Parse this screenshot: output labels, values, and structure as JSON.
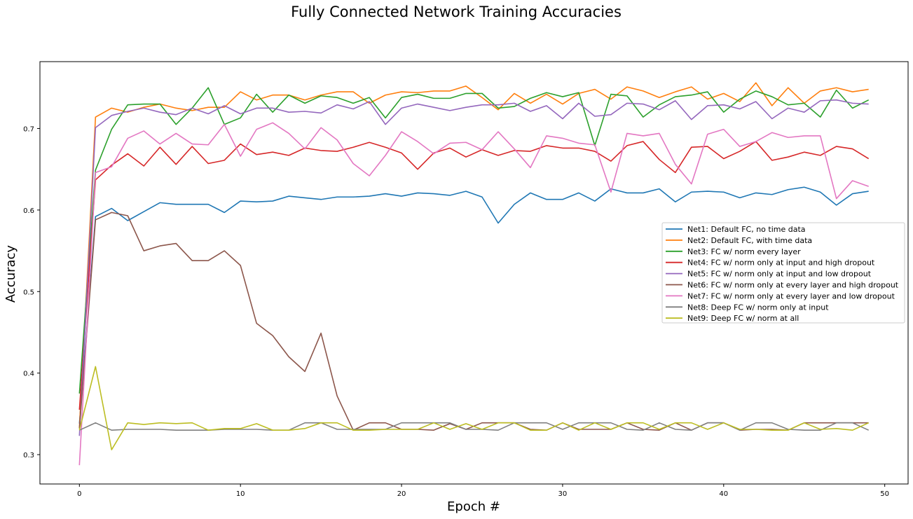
{
  "chart_data": {
    "type": "line",
    "title": "Fully Connected Network Training Accuracies",
    "xlabel": "Epoch #",
    "ylabel": "Accuracy",
    "xlim": [
      -2.45,
      51.45
    ],
    "ylim": [
      0.264,
      0.782
    ],
    "xticks": [
      0,
      10,
      20,
      30,
      40,
      50
    ],
    "yticks": [
      0.3,
      0.4,
      0.5,
      0.6,
      0.7
    ],
    "xtick_labels": [
      "0",
      "10",
      "20",
      "30",
      "40",
      "50"
    ],
    "ytick_labels": [
      "0.3",
      "0.4",
      "0.5",
      "0.6",
      "0.7"
    ],
    "grid": false,
    "legend_position": "center-right",
    "x": [
      0,
      1,
      2,
      3,
      4,
      5,
      6,
      7,
      8,
      9,
      10,
      11,
      12,
      13,
      14,
      15,
      16,
      17,
      18,
      19,
      20,
      21,
      22,
      23,
      24,
      25,
      26,
      27,
      28,
      29,
      30,
      31,
      32,
      33,
      34,
      35,
      36,
      37,
      38,
      39,
      40,
      41,
      42,
      43,
      44,
      45,
      46,
      47,
      48,
      49
    ],
    "series": [
      {
        "name": "Net1: Default FC, no time data",
        "color": "#1f77b4",
        "values": [
          0.338,
          0.592,
          0.602,
          0.587,
          0.598,
          0.609,
          0.607,
          0.607,
          0.607,
          0.597,
          0.611,
          0.61,
          0.611,
          0.617,
          0.615,
          0.613,
          0.616,
          0.616,
          0.617,
          0.62,
          0.617,
          0.621,
          0.62,
          0.618,
          0.623,
          0.616,
          0.584,
          0.607,
          0.621,
          0.613,
          0.613,
          0.621,
          0.611,
          0.626,
          0.621,
          0.621,
          0.626,
          0.61,
          0.622,
          0.623,
          0.622,
          0.615,
          0.621,
          0.619,
          0.625,
          0.628,
          0.622,
          0.606,
          0.62,
          0.623
        ]
      },
      {
        "name": "Net2: Default FC, with time data",
        "color": "#ff7f0e",
        "values": [
          0.333,
          0.714,
          0.725,
          0.72,
          0.726,
          0.73,
          0.725,
          0.722,
          0.726,
          0.726,
          0.745,
          0.735,
          0.741,
          0.741,
          0.735,
          0.741,
          0.745,
          0.745,
          0.731,
          0.741,
          0.745,
          0.744,
          0.746,
          0.746,
          0.752,
          0.738,
          0.723,
          0.743,
          0.731,
          0.742,
          0.73,
          0.743,
          0.748,
          0.736,
          0.751,
          0.746,
          0.738,
          0.745,
          0.751,
          0.736,
          0.743,
          0.733,
          0.756,
          0.728,
          0.75,
          0.731,
          0.746,
          0.75,
          0.745,
          0.748
        ]
      },
      {
        "name": "Net3: FC w/ norm every layer",
        "color": "#2ca02c",
        "values": [
          0.375,
          0.649,
          0.699,
          0.729,
          0.73,
          0.73,
          0.705,
          0.725,
          0.75,
          0.705,
          0.713,
          0.742,
          0.72,
          0.741,
          0.731,
          0.74,
          0.738,
          0.731,
          0.738,
          0.713,
          0.738,
          0.742,
          0.737,
          0.737,
          0.743,
          0.743,
          0.725,
          0.727,
          0.737,
          0.744,
          0.739,
          0.744,
          0.679,
          0.742,
          0.74,
          0.714,
          0.729,
          0.739,
          0.741,
          0.745,
          0.72,
          0.736,
          0.746,
          0.739,
          0.729,
          0.731,
          0.714,
          0.747,
          0.725,
          0.735
        ]
      },
      {
        "name": "Net4: FC w/ norm only at input and high dropout",
        "color": "#d62728",
        "values": [
          0.355,
          0.637,
          0.655,
          0.669,
          0.654,
          0.677,
          0.656,
          0.678,
          0.657,
          0.661,
          0.681,
          0.668,
          0.671,
          0.667,
          0.676,
          0.673,
          0.672,
          0.677,
          0.683,
          0.677,
          0.67,
          0.65,
          0.67,
          0.676,
          0.665,
          0.674,
          0.667,
          0.673,
          0.672,
          0.679,
          0.676,
          0.676,
          0.672,
          0.66,
          0.679,
          0.684,
          0.662,
          0.646,
          0.677,
          0.678,
          0.663,
          0.672,
          0.684,
          0.661,
          0.665,
          0.671,
          0.667,
          0.678,
          0.675,
          0.663
        ]
      },
      {
        "name": "Net5: FC w/ norm only at input and low dropout",
        "color": "#9467bd",
        "values": [
          0.323,
          0.701,
          0.716,
          0.721,
          0.725,
          0.72,
          0.717,
          0.725,
          0.718,
          0.728,
          0.718,
          0.725,
          0.725,
          0.72,
          0.721,
          0.719,
          0.729,
          0.724,
          0.733,
          0.705,
          0.725,
          0.73,
          0.726,
          0.722,
          0.726,
          0.729,
          0.729,
          0.731,
          0.721,
          0.728,
          0.712,
          0.731,
          0.715,
          0.717,
          0.731,
          0.73,
          0.723,
          0.734,
          0.711,
          0.728,
          0.729,
          0.724,
          0.733,
          0.712,
          0.725,
          0.72,
          0.734,
          0.735,
          0.731,
          0.73
        ]
      },
      {
        "name": "Net6: FC w/ norm only at every layer and high dropout",
        "color": "#8c564b",
        "values": [
          0.332,
          0.588,
          0.597,
          0.593,
          0.55,
          0.556,
          0.559,
          0.538,
          0.538,
          0.55,
          0.532,
          0.461,
          0.446,
          0.42,
          0.402,
          0.449,
          0.372,
          0.33,
          0.339,
          0.339,
          0.331,
          0.331,
          0.33,
          0.338,
          0.331,
          0.339,
          0.339,
          0.339,
          0.331,
          0.33,
          0.339,
          0.331,
          0.331,
          0.331,
          0.339,
          0.331,
          0.33,
          0.339,
          0.33,
          0.339,
          0.339,
          0.33,
          0.331,
          0.331,
          0.33,
          0.339,
          0.339,
          0.339,
          0.339,
          0.339
        ]
      },
      {
        "name": "Net7: FC w/ norm only at every layer and low dropout",
        "color": "#e377c2",
        "values": [
          0.287,
          0.646,
          0.653,
          0.688,
          0.697,
          0.681,
          0.694,
          0.681,
          0.68,
          0.705,
          0.666,
          0.699,
          0.707,
          0.694,
          0.675,
          0.701,
          0.686,
          0.657,
          0.642,
          0.667,
          0.696,
          0.684,
          0.669,
          0.682,
          0.683,
          0.674,
          0.696,
          0.675,
          0.652,
          0.691,
          0.688,
          0.682,
          0.68,
          0.622,
          0.694,
          0.691,
          0.694,
          0.656,
          0.632,
          0.693,
          0.699,
          0.678,
          0.684,
          0.695,
          0.689,
          0.691,
          0.691,
          0.614,
          0.636,
          0.629
        ]
      },
      {
        "name": "Net8: Deep FC w/ norm only at input",
        "color": "#7f7f7f",
        "values": [
          0.33,
          0.339,
          0.33,
          0.331,
          0.331,
          0.331,
          0.33,
          0.33,
          0.33,
          0.331,
          0.331,
          0.331,
          0.33,
          0.33,
          0.339,
          0.339,
          0.331,
          0.331,
          0.331,
          0.331,
          0.339,
          0.339,
          0.339,
          0.339,
          0.331,
          0.331,
          0.33,
          0.339,
          0.339,
          0.339,
          0.331,
          0.339,
          0.339,
          0.339,
          0.331,
          0.33,
          0.339,
          0.331,
          0.33,
          0.339,
          0.339,
          0.33,
          0.339,
          0.339,
          0.331,
          0.33,
          0.33,
          0.339,
          0.339,
          0.33
        ]
      },
      {
        "name": "Net9: Deep FC w/ norm at all",
        "color": "#bcbd22",
        "values": [
          0.33,
          0.408,
          0.306,
          0.339,
          0.337,
          0.339,
          0.338,
          0.339,
          0.33,
          0.332,
          0.332,
          0.338,
          0.33,
          0.33,
          0.332,
          0.339,
          0.339,
          0.33,
          0.33,
          0.331,
          0.331,
          0.331,
          0.339,
          0.331,
          0.338,
          0.331,
          0.339,
          0.339,
          0.33,
          0.33,
          0.339,
          0.33,
          0.339,
          0.331,
          0.339,
          0.339,
          0.331,
          0.339,
          0.339,
          0.331,
          0.339,
          0.331,
          0.331,
          0.33,
          0.33,
          0.339,
          0.331,
          0.332,
          0.33,
          0.339
        ]
      }
    ]
  }
}
